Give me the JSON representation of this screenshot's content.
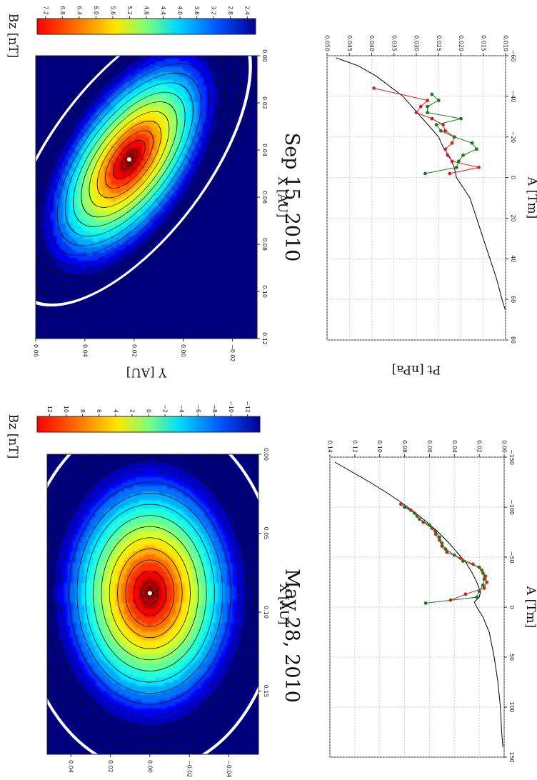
{
  "chart_data": [
    {
      "panel": "top-left",
      "type": "heatmap",
      "title": "May 28, 2010",
      "xlabel": "X [AU]",
      "ylabel": "Y [AU]",
      "xlim": [
        0.0,
        0.19
      ],
      "ylim": [
        -0.055,
        0.052
      ],
      "x_ticks": [
        "0.00",
        "0.05",
        "0.10",
        "0.15"
      ],
      "x_tick_values": [
        0.0,
        0.05,
        0.1,
        0.15
      ],
      "y_ticks": [
        "0.04",
        "0.02",
        "0.00",
        "−0.02",
        "−0.04"
      ],
      "y_tick_values": [
        0.04,
        0.02,
        0.0,
        -0.02,
        -0.04
      ],
      "colorbar": {
        "label": "Bz [nT]",
        "min": -13.5,
        "max": 13.5,
        "ticks": [
          "12",
          "10",
          "8",
          "6",
          "4",
          "2",
          "0",
          "−2",
          "−4",
          "−6",
          "−8",
          "−10",
          "−12"
        ],
        "tick_values": [
          12,
          10,
          8,
          6,
          4,
          2,
          0,
          -2,
          -4,
          -6,
          -8,
          -10,
          -12
        ]
      },
      "center_point": [
        0.088,
        0.0
      ],
      "field_peak": 13,
      "field_edge": -13,
      "boundary_color": "#ffffff"
    },
    {
      "panel": "top-right",
      "type": "heatmap",
      "title": "Sep 15, 2010",
      "xlabel": "X [AU]",
      "ylabel": "Y [AU]",
      "xlim": [
        0.0,
        0.12
      ],
      "ylim": [
        -0.03,
        0.06
      ],
      "x_ticks": [
        "0.00",
        "0.02",
        "0.04",
        "0.06",
        "0.08",
        "0.10",
        "0.12"
      ],
      "x_tick_values": [
        0.0,
        0.02,
        0.04,
        0.06,
        0.08,
        0.1,
        0.12
      ],
      "y_ticks": [
        "0.06",
        "0.04",
        "0.02",
        "0.00",
        "−0.02"
      ],
      "y_tick_values": [
        0.06,
        0.04,
        0.02,
        0.0,
        -0.02
      ],
      "colorbar": {
        "label": "Bz [nT]",
        "min": 2.2,
        "max": 7.4,
        "ticks": [
          "7.2",
          "6.8",
          "6.4",
          "6.0",
          "5.6",
          "5.2",
          "4.8",
          "4.4",
          "4.0",
          "3.6",
          "3.2",
          "2.8",
          "2.4"
        ],
        "tick_values": [
          7.2,
          6.8,
          6.4,
          6.0,
          5.6,
          5.2,
          4.8,
          4.4,
          4.0,
          3.6,
          3.2,
          2.8,
          2.4
        ]
      },
      "center_point": [
        0.044,
        0.022
      ],
      "field_peak": 7.3,
      "field_edge": 2.3,
      "boundary_color": "#ffffff"
    },
    {
      "panel": "bottom-left",
      "type": "line",
      "xlabel": "A [Tm]",
      "ylabel": "Pt [nPa]",
      "xlim": [
        -150,
        150
      ],
      "ylim": [
        0.0,
        0.14
      ],
      "grid": true,
      "x_ticks": [
        "−150",
        "−100",
        "−50",
        "0",
        "50",
        "100",
        "150"
      ],
      "x_tick_values": [
        -150,
        -100,
        -50,
        0,
        50,
        100,
        150
      ],
      "y_ticks": [
        "0.00",
        "0.02",
        "0.04",
        "0.06",
        "0.08",
        "0.10",
        "0.12",
        "0.14"
      ],
      "y_tick_values": [
        0.0,
        0.02,
        0.04,
        0.06,
        0.08,
        0.1,
        0.12,
        0.14
      ],
      "fit": {
        "color": "#000000",
        "x": [
          -145,
          -135,
          -125,
          -115,
          -105,
          -95,
          -85,
          -75,
          -65,
          -55,
          -45,
          -35,
          -25,
          -15,
          -10,
          -5,
          0,
          10,
          25,
          50,
          75,
          100,
          125,
          140
        ],
        "y": [
          0.136,
          0.122,
          0.108,
          0.095,
          0.083,
          0.072,
          0.062,
          0.053,
          0.045,
          0.038,
          0.031,
          0.026,
          0.022,
          0.019,
          0.02,
          0.024,
          0.022,
          0.017,
          0.012,
          0.008,
          0.005,
          0.003,
          0.002,
          0.001
        ]
      },
      "series": [
        {
          "color": "#d42020",
          "x": [
            -103,
            -97,
            -91,
            -85,
            -79,
            -73,
            -67,
            -61,
            -55,
            -49,
            -43,
            -37,
            -31,
            -25,
            -19,
            -13,
            -7
          ],
          "y": [
            0.083,
            0.075,
            0.07,
            0.065,
            0.058,
            0.055,
            0.052,
            0.05,
            0.046,
            0.035,
            0.025,
            0.018,
            0.015,
            0.014,
            0.016,
            0.031,
            0.043
          ]
        },
        {
          "color": "#1a7a1a",
          "x": [
            -100,
            -94,
            -88,
            -82,
            -76,
            -70,
            -64,
            -58,
            -52,
            -46,
            -40,
            -34,
            -28,
            -22,
            -16,
            -10,
            -4
          ],
          "y": [
            0.08,
            0.072,
            0.068,
            0.06,
            0.055,
            0.052,
            0.05,
            0.047,
            0.04,
            0.033,
            0.02,
            0.017,
            0.016,
            0.017,
            0.02,
            0.022,
            0.063
          ]
        }
      ]
    },
    {
      "panel": "bottom-right",
      "type": "line",
      "xlabel": "A [Tm]",
      "ylabel": "Pt [nPa]",
      "xlim": [
        -60,
        80
      ],
      "ylim": [
        0.01,
        0.05
      ],
      "grid": true,
      "x_ticks": [
        "−60",
        "−40",
        "−20",
        "0",
        "20",
        "40",
        "60",
        "80"
      ],
      "x_tick_values": [
        -60,
        -40,
        -20,
        0,
        20,
        40,
        60,
        80
      ],
      "y_ticks": [
        "0.010",
        "0.015",
        "0.020",
        "0.025",
        "0.030",
        "0.035",
        "0.040",
        "0.045",
        "0.050"
      ],
      "y_tick_values": [
        0.01,
        0.015,
        0.02,
        0.025,
        0.03,
        0.035,
        0.04,
        0.045,
        0.05
      ],
      "fit": {
        "color": "#000000",
        "x": [
          -59,
          -55,
          -50,
          -45,
          -40,
          -35,
          -30,
          -25,
          -20,
          -15,
          -10,
          -5,
          0,
          5,
          10,
          20,
          30,
          40,
          50,
          60,
          65
        ],
        "y": [
          0.048,
          0.043,
          0.039,
          0.036,
          0.033,
          0.031,
          0.029,
          0.027,
          0.025,
          0.024,
          0.0225,
          0.0215,
          0.021,
          0.0195,
          0.018,
          0.0165,
          0.015,
          0.0135,
          0.012,
          0.0108,
          0.0101
        ]
      },
      "series": [
        {
          "color": "#d42020",
          "x": [
            -44,
            -38,
            -35,
            -32,
            -29,
            -26,
            -23,
            -20,
            -17,
            -14,
            -11,
            -8,
            -5,
            -2
          ],
          "y": [
            0.0395,
            0.0275,
            0.029,
            0.03,
            0.0265,
            0.024,
            0.0235,
            0.0215,
            0.022,
            0.0235,
            0.023,
            0.022,
            0.016,
            0.0225
          ]
        },
        {
          "color": "#1a7a1a",
          "x": [
            -41,
            -38,
            -35,
            -32,
            -29,
            -26,
            -23,
            -20,
            -17,
            -14,
            -11,
            -8,
            -5,
            -2
          ],
          "y": [
            0.0265,
            0.025,
            0.0275,
            0.0275,
            0.02,
            0.0255,
            0.0245,
            0.0215,
            0.0175,
            0.0165,
            0.0195,
            0.0205,
            0.021,
            0.028
          ]
        }
      ]
    }
  ]
}
